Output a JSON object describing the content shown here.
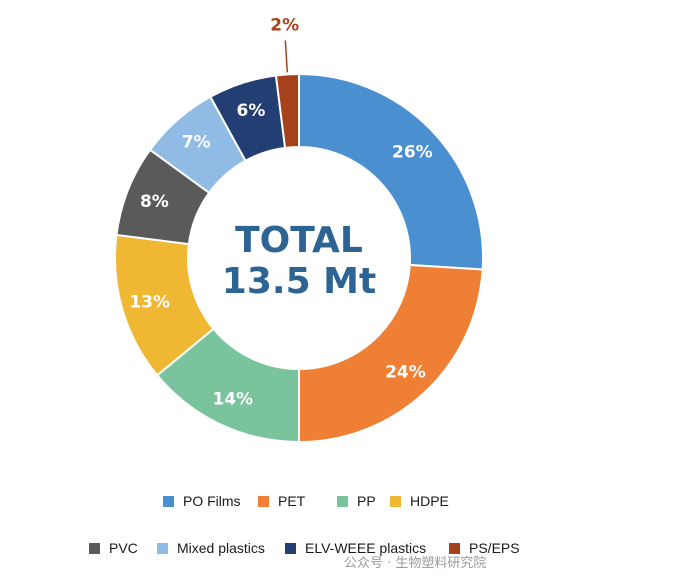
{
  "chart_data": {
    "type": "pie",
    "style": "donut",
    "center_text": [
      "TOTAL",
      "13.5 Mt"
    ],
    "categories": [
      "PO Films",
      "PET",
      "PP",
      "HDPE",
      "PVC",
      "Mixed plastics",
      "ELV-WEEE plastics",
      "PS/EPS"
    ],
    "values": [
      26,
      24,
      14,
      13,
      8,
      7,
      6,
      2
    ],
    "labels": [
      "26%",
      "24%",
      "14%",
      "13%",
      "8%",
      "7%",
      "6%",
      "2%"
    ],
    "colors": [
      "#4a8fcf",
      "#ee7f35",
      "#79c39d",
      "#f0b733",
      "#5a5a5a",
      "#8fbbe5",
      "#233e72",
      "#a6411b"
    ],
    "legend_placement": "bottom"
  },
  "legend": [
    {
      "label": "PO Films",
      "color": "#4a8fcf"
    },
    {
      "label": "PET",
      "color": "#ee7f35"
    },
    {
      "label": "PP",
      "color": "#79c39d"
    },
    {
      "label": "HDPE",
      "color": "#f0b733"
    },
    {
      "label": "PVC",
      "color": "#5a5a5a"
    },
    {
      "label": "Mixed plastics",
      "color": "#8fbbe5"
    },
    {
      "label": "ELV-WEEE plastics",
      "color": "#233e72"
    },
    {
      "label": "PS/EPS",
      "color": "#a6411b"
    }
  ],
  "watermark": {
    "text": "公众号 · 生物塑料研究院"
  }
}
